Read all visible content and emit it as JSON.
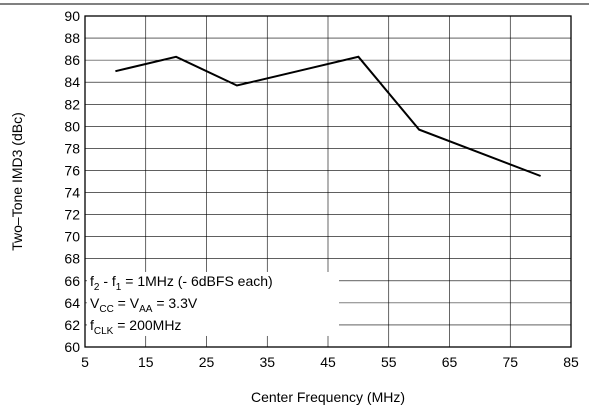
{
  "chart_data": {
    "type": "line",
    "title": "",
    "xlabel": "Center Frequency (MHz)",
    "ylabel": "Two–Tone IMD3 (dBc)",
    "xlim": [
      5,
      85
    ],
    "ylim": [
      60,
      90
    ],
    "x_ticks": [
      5,
      15,
      25,
      35,
      45,
      55,
      65,
      75,
      85
    ],
    "y_ticks": [
      60,
      62,
      64,
      66,
      68,
      70,
      72,
      74,
      76,
      78,
      80,
      82,
      84,
      86,
      88,
      90
    ],
    "grid": true,
    "series": [
      {
        "x": [
          10,
          20,
          30,
          40,
          50,
          60,
          70,
          80
        ],
        "y": [
          85.0,
          86.3,
          83.7,
          85.0,
          86.3,
          79.7,
          77.6,
          75.5
        ]
      }
    ],
    "annotations": {
      "line1": {
        "text": "f",
        "sub": "2",
        "text2": " -  f",
        "sub2": "1",
        "text3": " = 1MHz (- 6dBFS each)"
      },
      "line2": {
        "text": "V",
        "sub": "CC",
        "text2": " = V",
        "sub2": "AA",
        "text3": " = 3.3V"
      },
      "line3": {
        "text": "f",
        "sub": "CLK",
        "text2": " = 200MHz"
      }
    }
  }
}
